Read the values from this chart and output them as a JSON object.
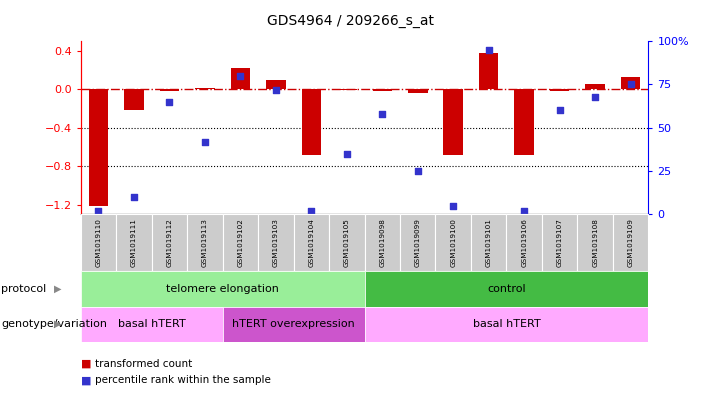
{
  "title": "GDS4964 / 209266_s_at",
  "samples": [
    "GSM1019110",
    "GSM1019111",
    "GSM1019112",
    "GSM1019113",
    "GSM1019102",
    "GSM1019103",
    "GSM1019104",
    "GSM1019105",
    "GSM1019098",
    "GSM1019099",
    "GSM1019100",
    "GSM1019101",
    "GSM1019106",
    "GSM1019107",
    "GSM1019108",
    "GSM1019109"
  ],
  "bar_values": [
    -1.22,
    -0.22,
    -0.02,
    0.01,
    0.22,
    0.1,
    -0.68,
    -0.01,
    -0.02,
    -0.04,
    -0.68,
    0.38,
    -0.68,
    -0.02,
    0.05,
    0.13
  ],
  "dot_values": [
    2,
    10,
    65,
    42,
    80,
    72,
    2,
    35,
    58,
    25,
    5,
    95,
    2,
    60,
    68,
    75
  ],
  "ylim_left": [
    -1.3,
    0.5
  ],
  "ylim_right": [
    0,
    100
  ],
  "left_ticks": [
    0.4,
    0.0,
    -0.4,
    -0.8,
    -1.2
  ],
  "right_ticks": [
    100,
    75,
    50,
    25,
    0
  ],
  "right_tick_labels": [
    "100%",
    "75",
    "50",
    "25",
    "0"
  ],
  "bar_color": "#cc0000",
  "dot_color": "#3333cc",
  "hline_color": "#cc0000",
  "dotted_lines": [
    -0.4,
    -0.8
  ],
  "protocol_groups": [
    {
      "label": "telomere elongation",
      "start": 0,
      "end": 8,
      "color": "#99ee99"
    },
    {
      "label": "control",
      "start": 8,
      "end": 16,
      "color": "#44bb44"
    }
  ],
  "genotype_groups": [
    {
      "label": "basal hTERT",
      "start": 0,
      "end": 4,
      "color": "#ffaaff"
    },
    {
      "label": "hTERT overexpression",
      "start": 4,
      "end": 8,
      "color": "#cc55cc"
    },
    {
      "label": "basal hTERT",
      "start": 8,
      "end": 16,
      "color": "#ffaaff"
    }
  ],
  "legend_items": [
    {
      "label": "transformed count",
      "color": "#cc0000"
    },
    {
      "label": "percentile rank within the sample",
      "color": "#3333cc"
    }
  ],
  "background_color": "#ffffff",
  "tick_bg_color": "#cccccc",
  "label_left": "protocol",
  "label_left2": "genotype/variation"
}
